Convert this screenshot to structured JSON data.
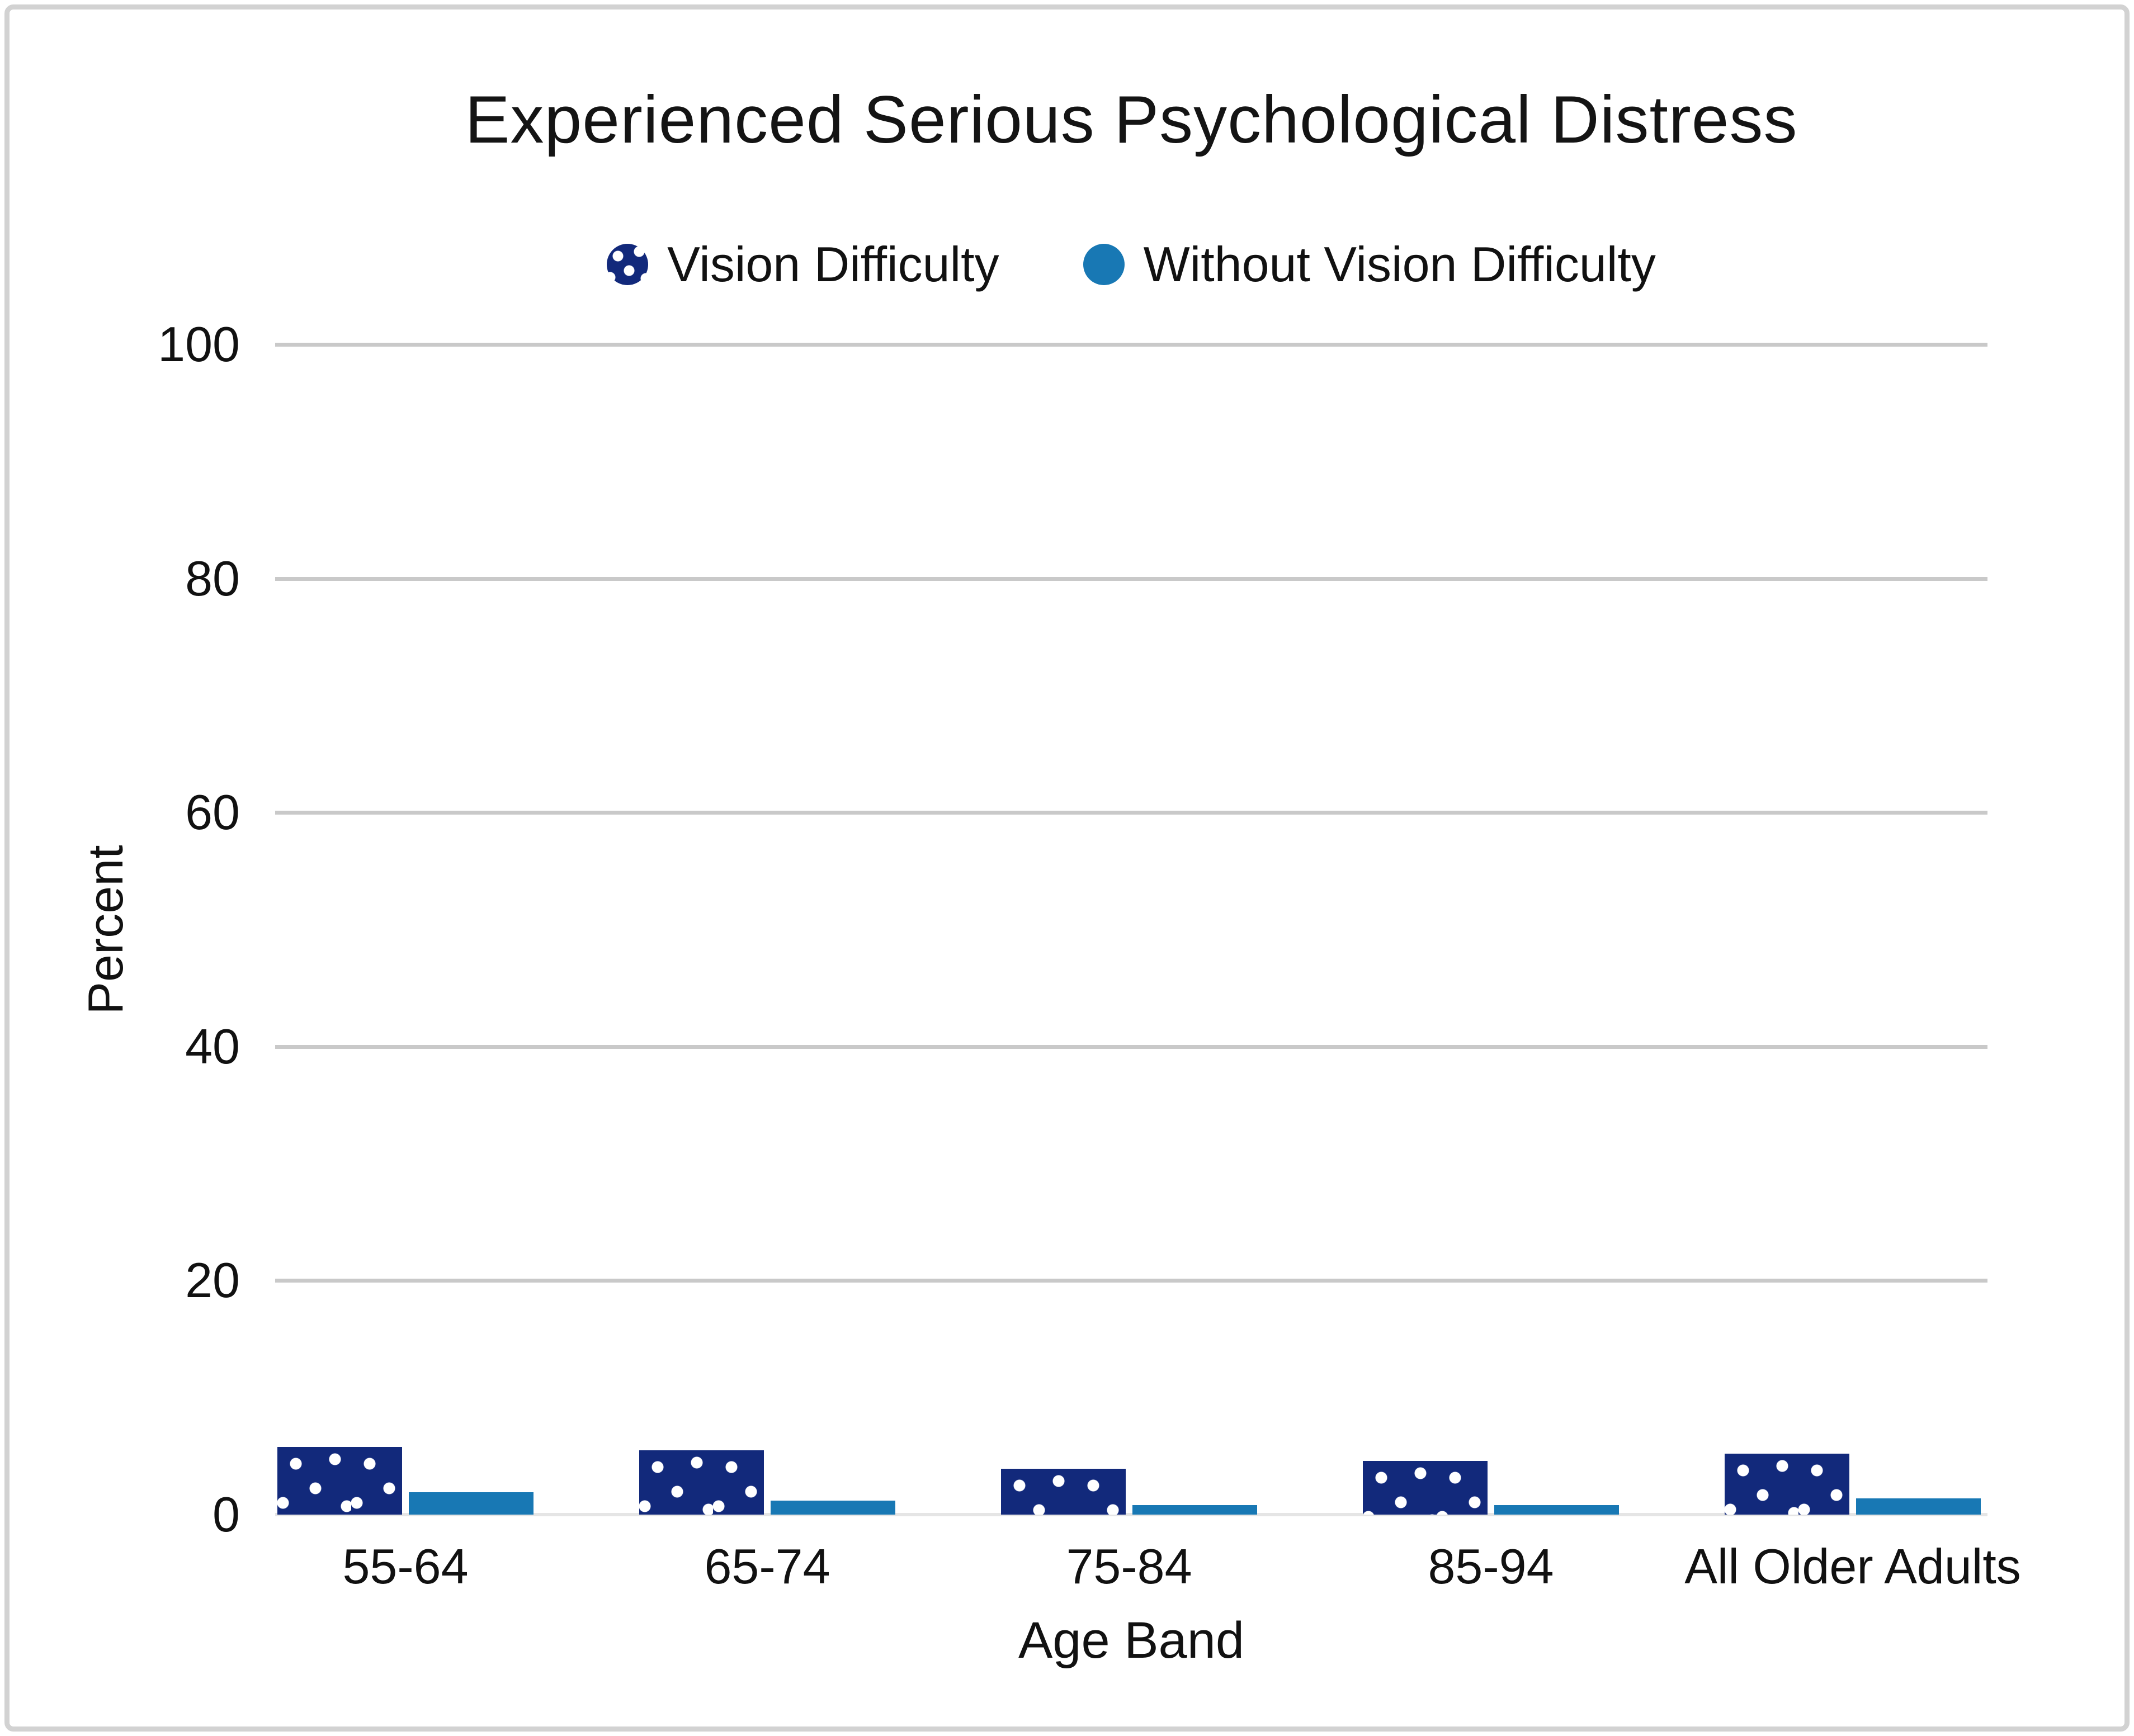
{
  "title": "Experienced Serious Psychological Distress",
  "legend": {
    "items": [
      {
        "label": "Vision Difficulty",
        "swatch": "navy-polka-dot-circle",
        "color": "#12297B"
      },
      {
        "label": "Without Vision Difficulty",
        "swatch": "solid-blue-circle",
        "color": "#1878B4"
      }
    ]
  },
  "chart_data": {
    "type": "bar",
    "title": "Experienced Serious Psychological Distress",
    "categories": [
      "55-64",
      "65-74",
      "75-84",
      "85-94",
      "All Older Adults"
    ],
    "series": [
      {
        "name": "Vision Difficulty",
        "color": "#12297B",
        "pattern": "white-polka-dots",
        "values": [
          5.8,
          5.5,
          3.9,
          4.6,
          5.2
        ]
      },
      {
        "name": "Without Vision Difficulty",
        "color": "#1878B4",
        "pattern": "solid",
        "values": [
          1.9,
          1.2,
          0.8,
          0.8,
          1.4
        ]
      }
    ],
    "xlabel": "Age Band",
    "ylabel": "Percent",
    "ylim": [
      0,
      100
    ],
    "yticks": [
      0,
      20,
      40,
      60,
      80,
      100
    ],
    "grid": true,
    "legend_position": "top",
    "gridline_color": "#c9c9c9",
    "baseline_color": "#e5e5e5",
    "panel_border_color": "#d2d2d2"
  }
}
